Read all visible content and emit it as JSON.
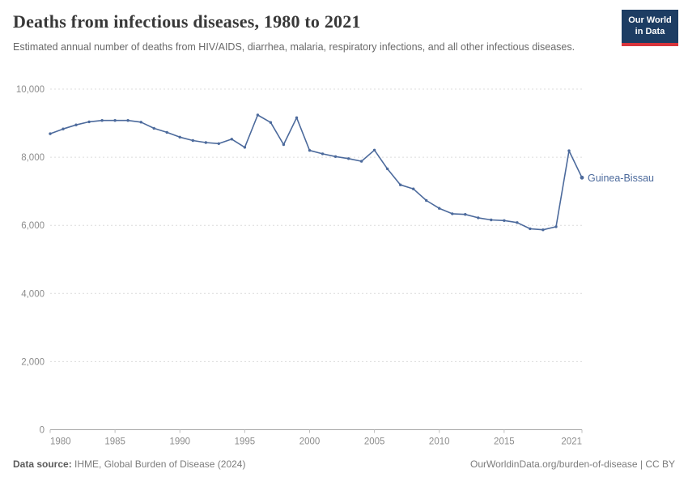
{
  "header": {
    "title": "Deaths from infectious diseases, 1980 to 2021",
    "subtitle": "Estimated annual number of deaths from HIV/AIDS, diarrhea, malaria, respiratory infections, and all other infectious diseases.",
    "logo": {
      "line1": "Our World",
      "line2": "in Data"
    }
  },
  "colors": {
    "line": "#4C6A9C",
    "logo_bg": "#1D3D63",
    "logo_stripe": "#D8353C",
    "grid": "#DCDCDC",
    "axis": "#A8A8A8",
    "tick_text": "#8C8C8C"
  },
  "chart_data": {
    "type": "line",
    "title": "Deaths from infectious diseases, 1980 to 2021",
    "xlabel": "",
    "ylabel": "",
    "xlim": [
      1980,
      2021
    ],
    "ylim": [
      0,
      10000
    ],
    "x_ticks": [
      1980,
      1985,
      1990,
      1995,
      2000,
      2005,
      2010,
      2015,
      2021
    ],
    "y_ticks": [
      0,
      2000,
      4000,
      6000,
      8000,
      10000
    ],
    "grid": "dashed-horizontal",
    "legend_position": "end-of-line",
    "x": [
      1980,
      1981,
      1982,
      1983,
      1984,
      1985,
      1986,
      1987,
      1988,
      1989,
      1990,
      1991,
      1992,
      1993,
      1994,
      1995,
      1996,
      1997,
      1998,
      1999,
      2000,
      2001,
      2002,
      2003,
      2004,
      2005,
      2006,
      2007,
      2008,
      2009,
      2010,
      2011,
      2012,
      2013,
      2014,
      2015,
      2016,
      2017,
      2018,
      2019,
      2020,
      2021
    ],
    "series": [
      {
        "name": "Guinea-Bissau",
        "color": "#4C6A9C",
        "values": [
          8690,
          8830,
          8950,
          9040,
          9080,
          9080,
          9080,
          9030,
          8850,
          8730,
          8590,
          8490,
          8430,
          8400,
          8530,
          8290,
          9240,
          9020,
          8370,
          9160,
          8200,
          8100,
          8020,
          7960,
          7880,
          8210,
          7660,
          7190,
          7070,
          6730,
          6500,
          6340,
          6320,
          6220,
          6160,
          6140,
          6080,
          5900,
          5870,
          5960,
          8190,
          7400
        ]
      }
    ]
  },
  "footer": {
    "source_label": "Data source:",
    "source_value": " IHME, Global Burden of Disease (2024)",
    "right_text": "OurWorldinData.org/burden-of-disease | CC BY"
  }
}
